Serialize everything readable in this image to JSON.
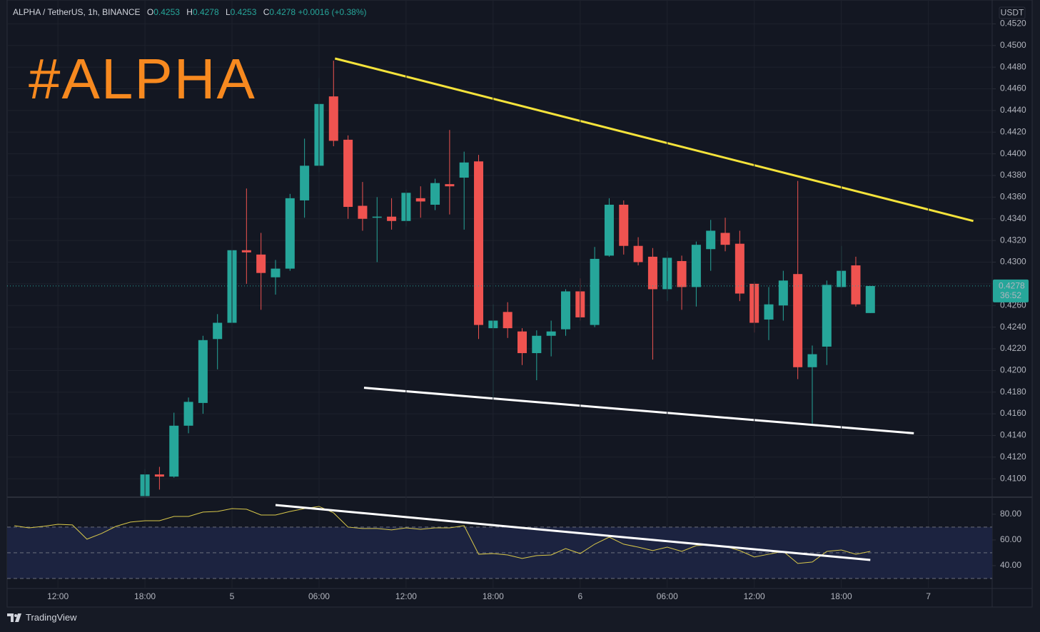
{
  "header": {
    "symbol": "ALPHA / TetherUS, 1h, BINANCE",
    "ohlc": [
      {
        "key": "O",
        "value": "0.4253"
      },
      {
        "key": "H",
        "value": "0.4278"
      },
      {
        "key": "L",
        "value": "0.4253"
      },
      {
        "key": "C",
        "value": "0.4278"
      }
    ],
    "change": "+0.0016 (+0.38%)"
  },
  "annotation": {
    "text": "#ALPHA",
    "color": "#f7891f"
  },
  "footer": "TradingView",
  "chart_data": [
    {
      "type": "candlestick",
      "up_color": "#26a69a",
      "down_color": "#ef5350",
      "axis_unit": "USDT",
      "xlim": [
        -0.5,
        67.4
      ],
      "ylim": [
        0.4083,
        0.4542
      ],
      "yticks": [
        {
          "value": 0.41,
          "label": "0.4100"
        },
        {
          "value": 0.412,
          "label": "0.4120"
        },
        {
          "value": 0.414,
          "label": "0.4140"
        },
        {
          "value": 0.416,
          "label": "0.4160"
        },
        {
          "value": 0.418,
          "label": "0.4180"
        },
        {
          "value": 0.42,
          "label": "0.4200"
        },
        {
          "value": 0.422,
          "label": "0.4220"
        },
        {
          "value": 0.424,
          "label": "0.4240"
        },
        {
          "value": 0.426,
          "label": "0.4260"
        },
        {
          "value": 0.428,
          "label": "0.4280"
        },
        {
          "value": 0.43,
          "label": "0.4300"
        },
        {
          "value": 0.432,
          "label": "0.4320"
        },
        {
          "value": 0.434,
          "label": "0.4340"
        },
        {
          "value": 0.436,
          "label": "0.4360"
        },
        {
          "value": 0.438,
          "label": "0.4380"
        },
        {
          "value": 0.44,
          "label": "0.4400"
        },
        {
          "value": 0.442,
          "label": "0.4420"
        },
        {
          "value": 0.444,
          "label": "0.4440"
        },
        {
          "value": 0.446,
          "label": "0.4460"
        },
        {
          "value": 0.448,
          "label": "0.4480"
        },
        {
          "value": 0.45,
          "label": "0.4500"
        },
        {
          "value": 0.452,
          "label": "0.4520"
        }
      ],
      "grid": true,
      "x": [
        9,
        10,
        11,
        12,
        13,
        14,
        15,
        16,
        17,
        18,
        19,
        20,
        21,
        22,
        23,
        24,
        25,
        26,
        27,
        28,
        29,
        30,
        31,
        32,
        33,
        34,
        35,
        36,
        37,
        38,
        39,
        40,
        41,
        42,
        43,
        44,
        45,
        46,
        47,
        48,
        49,
        50,
        51,
        52,
        53,
        54,
        55,
        56,
        57,
        58,
        59
      ],
      "open": [
        0.4084,
        0.4104,
        0.4102,
        0.4149,
        0.417,
        0.4229,
        0.4244,
        0.4311,
        0.4307,
        0.4286,
        0.4294,
        0.4357,
        0.4389,
        0.4453,
        0.4413,
        0.4352,
        0.4341,
        0.4342,
        0.4338,
        0.4359,
        0.4353,
        0.4372,
        0.4378,
        0.4393,
        0.4239,
        0.4254,
        0.4236,
        0.4216,
        0.4232,
        0.4238,
        0.4273,
        0.4242,
        0.4306,
        0.4353,
        0.4315,
        0.4305,
        0.4275,
        0.4301,
        0.4277,
        0.4312,
        0.4327,
        0.4317,
        0.428,
        0.4247,
        0.426,
        0.4289,
        0.4203,
        0.4222,
        0.4277,
        0.4297,
        0.4253
      ],
      "high": [
        0.4109,
        0.4111,
        0.4161,
        0.4175,
        0.4232,
        0.4252,
        0.4331,
        0.4368,
        0.4327,
        0.4302,
        0.4363,
        0.4414,
        0.447,
        0.4486,
        0.4417,
        0.4374,
        0.436,
        0.4359,
        0.4367,
        0.437,
        0.4377,
        0.4422,
        0.4402,
        0.4399,
        0.4261,
        0.4263,
        0.4239,
        0.4237,
        0.4246,
        0.4275,
        0.4285,
        0.4314,
        0.4359,
        0.4357,
        0.4323,
        0.4313,
        0.431,
        0.4306,
        0.4319,
        0.4339,
        0.4341,
        0.4329,
        0.4282,
        0.4277,
        0.4292,
        0.4375,
        0.4223,
        0.4283,
        0.4315,
        0.4305,
        0.4278
      ],
      "low": [
        0.4082,
        0.409,
        0.4101,
        0.4142,
        0.416,
        0.4201,
        0.424,
        0.428,
        0.4256,
        0.427,
        0.4292,
        0.4341,
        0.4383,
        0.4407,
        0.434,
        0.4329,
        0.43,
        0.433,
        0.4333,
        0.4341,
        0.4348,
        0.4344,
        0.433,
        0.4229,
        0.4174,
        0.423,
        0.4205,
        0.4191,
        0.4213,
        0.4232,
        0.4246,
        0.424,
        0.4305,
        0.4307,
        0.4297,
        0.421,
        0.4264,
        0.4256,
        0.4259,
        0.4292,
        0.431,
        0.4264,
        0.4235,
        0.4228,
        0.4246,
        0.4192,
        0.4151,
        0.4205,
        0.4276,
        0.4259,
        0.4253
      ],
      "close": [
        0.4104,
        0.4102,
        0.4149,
        0.4171,
        0.4228,
        0.4244,
        0.4311,
        0.4309,
        0.429,
        0.4294,
        0.4359,
        0.4389,
        0.4446,
        0.4412,
        0.4351,
        0.434,
        0.4342,
        0.4338,
        0.4364,
        0.4356,
        0.4373,
        0.437,
        0.4392,
        0.4242,
        0.4246,
        0.4239,
        0.4216,
        0.4232,
        0.4236,
        0.4273,
        0.4249,
        0.4303,
        0.4353,
        0.4315,
        0.43,
        0.4275,
        0.4304,
        0.4277,
        0.4316,
        0.4329,
        0.4316,
        0.4271,
        0.4244,
        0.4261,
        0.4283,
        0.4203,
        0.4215,
        0.4279,
        0.4292,
        0.4261,
        0.4278
      ],
      "last_price": {
        "value": 0.4278,
        "label": "0.4278"
      },
      "countdown": "36:52",
      "trendlines": [
        {
          "color": "#f5e33b",
          "x": [
            22.1,
            66.1
          ],
          "y": [
            0.4488,
            0.4338
          ]
        },
        {
          "color": "#ffffff",
          "x": [
            24.1,
            62.0
          ],
          "y": [
            0.4184,
            0.4142
          ]
        }
      ]
    },
    {
      "type": "line",
      "color": "#d9c84a",
      "xlim": [
        -0.5,
        67.4
      ],
      "ylim": [
        22.2,
        93.3
      ],
      "yticks": [
        {
          "value": 40,
          "label": "40.00"
        },
        {
          "value": 60,
          "label": "60.00"
        },
        {
          "value": 80,
          "label": "80.00"
        }
      ],
      "xticks": [
        {
          "value": 3,
          "label": "12:00"
        },
        {
          "value": 9,
          "label": "18:00"
        },
        {
          "value": 15,
          "label": "5"
        },
        {
          "value": 21,
          "label": "06:00"
        },
        {
          "value": 27,
          "label": "12:00"
        },
        {
          "value": 33,
          "label": "18:00"
        },
        {
          "value": 39,
          "label": "6"
        },
        {
          "value": 45,
          "label": "06:00"
        },
        {
          "value": 51,
          "label": "12:00"
        },
        {
          "value": 57,
          "label": "18:00"
        },
        {
          "value": 63,
          "label": "7"
        }
      ],
      "band": [
        30,
        70
      ],
      "levels": [
        30,
        50,
        70
      ],
      "x": [
        0,
        1,
        2,
        3,
        4,
        5,
        6,
        7,
        8,
        9,
        10,
        11,
        12,
        13,
        14,
        15,
        16,
        17,
        18,
        19,
        20,
        21,
        22,
        23,
        24,
        25,
        26,
        27,
        28,
        29,
        30,
        31,
        32,
        33,
        34,
        35,
        36,
        37,
        38,
        39,
        40,
        41,
        42,
        43,
        44,
        45,
        46,
        47,
        48,
        49,
        50,
        51,
        52,
        53,
        54,
        55,
        56,
        57,
        58,
        59
      ],
      "values": [
        71.1,
        69.4,
        70.6,
        72.2,
        71.7,
        60.6,
        65.0,
        70.6,
        73.9,
        75.0,
        75.0,
        78.3,
        78.3,
        81.7,
        82.2,
        84.4,
        83.9,
        79.4,
        79.4,
        82.2,
        84.4,
        86.1,
        81.1,
        70.0,
        68.9,
        68.9,
        67.8,
        69.4,
        68.3,
        69.4,
        69.4,
        71.1,
        48.9,
        49.4,
        48.3,
        45.6,
        47.8,
        48.3,
        53.3,
        49.4,
        56.7,
        62.2,
        56.7,
        54.4,
        51.7,
        54.4,
        51.1,
        55.6,
        56.1,
        55.0,
        51.7,
        46.7,
        48.9,
        51.1,
        41.7,
        42.8,
        51.1,
        52.2,
        48.9,
        51.1
      ],
      "trendlines": [
        {
          "color": "#ffffff",
          "x": [
            18.0,
            59.0
          ],
          "y": [
            87.2,
            44.4
          ]
        }
      ]
    }
  ]
}
